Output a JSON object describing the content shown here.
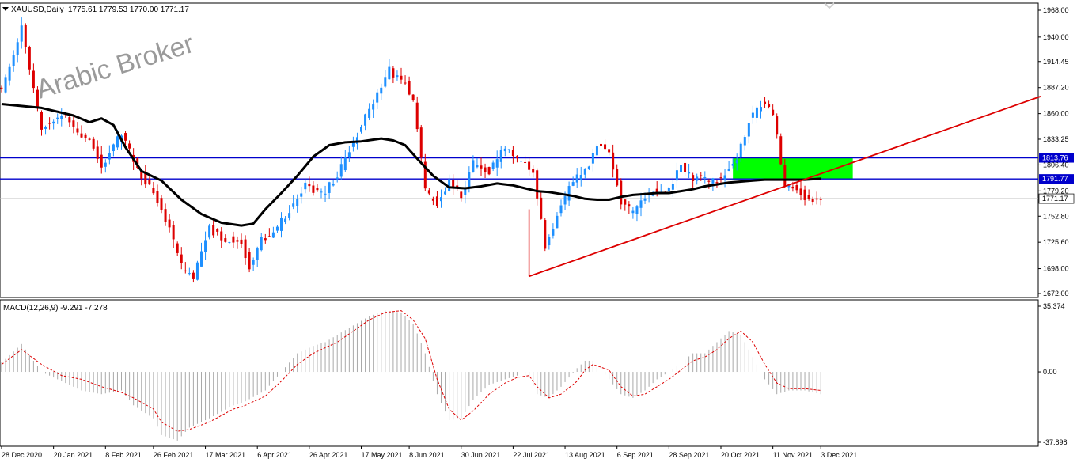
{
  "header": {
    "symbol_text": "XAUUSD,Daily",
    "ohlc_text": "1775.61 1779.53 1770.00 1771.17"
  },
  "watermark": "Arabic Broker",
  "macd_header": "MACD(12,26,9) -9.291 -7.278",
  "chart_data": [
    {
      "type": "candlestick",
      "symbol": "XAUUSD",
      "timeframe": "Daily",
      "ohlc_last": {
        "open": 1775.61,
        "high": 1779.53,
        "low": 1770.0,
        "close": 1771.17
      },
      "ylim": [
        1672,
        1968
      ],
      "y_ticks": [
        1968.0,
        1940.0,
        1914.45,
        1887.2,
        1860.0,
        1833.25,
        1806.4,
        1779.2,
        1752.8,
        1725.6,
        1698.0,
        1672.0
      ],
      "x_tick_labels": [
        "28 Dec 2020",
        "20 Jan 2021",
        "8 Feb 2021",
        "26 Feb 2021",
        "17 Mar 2021",
        "6 Apr 2021",
        "26 Apr 2021",
        "17 May 2021",
        "8 Jun 2021",
        "30 Jun 2021",
        "22 Jul 2021",
        "13 Aug 2021",
        "6 Sep 2021",
        "28 Sep 2021",
        "20 Oct 2021",
        "11 Nov 2021",
        "3 Dec 2021"
      ],
      "price_path": [
        [
          0,
          1885
        ],
        [
          5,
          1950
        ],
        [
          10,
          1845
        ],
        [
          15,
          1860
        ],
        [
          22,
          1830
        ],
        [
          25,
          1805
        ],
        [
          30,
          1840
        ],
        [
          34,
          1800
        ],
        [
          38,
          1778
        ],
        [
          42,
          1740
        ],
        [
          45,
          1700
        ],
        [
          48,
          1690
        ],
        [
          52,
          1740
        ],
        [
          55,
          1730
        ],
        [
          60,
          1725
        ],
        [
          62,
          1700
        ],
        [
          65,
          1728
        ],
        [
          68,
          1735
        ],
        [
          72,
          1760
        ],
        [
          76,
          1785
        ],
        [
          80,
          1775
        ],
        [
          84,
          1795
        ],
        [
          88,
          1830
        ],
        [
          92,
          1865
        ],
        [
          97,
          1905
        ],
        [
          101,
          1890
        ],
        [
          103,
          1875
        ],
        [
          106,
          1780
        ],
        [
          109,
          1765
        ],
        [
          112,
          1790
        ],
        [
          115,
          1775
        ],
        [
          118,
          1808
        ],
        [
          122,
          1800
        ],
        [
          126,
          1825
        ],
        [
          130,
          1810
        ],
        [
          133,
          1800
        ],
        [
          136,
          1720
        ],
        [
          139,
          1755
        ],
        [
          143,
          1790
        ],
        [
          146,
          1800
        ],
        [
          149,
          1825
        ],
        [
          152,
          1822
        ],
        [
          155,
          1768
        ],
        [
          158,
          1755
        ],
        [
          161,
          1775
        ],
        [
          164,
          1780
        ],
        [
          167,
          1783
        ],
        [
          170,
          1805
        ],
        [
          173,
          1793
        ],
        [
          176,
          1790
        ],
        [
          180,
          1790
        ],
        [
          184,
          1815
        ],
        [
          187,
          1852
        ],
        [
          190,
          1870
        ],
        [
          193,
          1860
        ],
        [
          196,
          1785
        ],
        [
          199,
          1783
        ],
        [
          202,
          1768
        ],
        [
          205,
          1770
        ]
      ],
      "moving_average": [
        [
          0,
          1870
        ],
        [
          10,
          1866
        ],
        [
          18,
          1858
        ],
        [
          22,
          1851
        ],
        [
          25,
          1855
        ],
        [
          28,
          1848
        ],
        [
          31,
          1825
        ],
        [
          35,
          1800
        ],
        [
          40,
          1790
        ],
        [
          45,
          1770
        ],
        [
          50,
          1755
        ],
        [
          55,
          1746
        ],
        [
          60,
          1743
        ],
        [
          63,
          1745
        ],
        [
          66,
          1760
        ],
        [
          70,
          1777
        ],
        [
          74,
          1795
        ],
        [
          78,
          1815
        ],
        [
          82,
          1827
        ],
        [
          86,
          1830
        ],
        [
          90,
          1831
        ],
        [
          95,
          1834
        ],
        [
          98,
          1832
        ],
        [
          101,
          1827
        ],
        [
          104,
          1813
        ],
        [
          108,
          1795
        ],
        [
          112,
          1783
        ],
        [
          116,
          1782
        ],
        [
          120,
          1784
        ],
        [
          124,
          1787
        ],
        [
          128,
          1785
        ],
        [
          131,
          1782
        ],
        [
          134,
          1779
        ],
        [
          137,
          1778
        ],
        [
          140,
          1776
        ],
        [
          143,
          1774
        ],
        [
          146,
          1771
        ],
        [
          149,
          1770
        ],
        [
          152,
          1770
        ],
        [
          155,
          1773
        ],
        [
          158,
          1775
        ],
        [
          161,
          1776
        ],
        [
          164,
          1777
        ],
        [
          167,
          1777
        ],
        [
          170,
          1779
        ],
        [
          173,
          1781
        ],
        [
          176,
          1784
        ],
        [
          179,
          1786
        ],
        [
          182,
          1788
        ],
        [
          185,
          1789
        ],
        [
          188,
          1790
        ],
        [
          191,
          1791
        ],
        [
          194,
          1791
        ],
        [
          197,
          1791
        ],
        [
          201,
          1791
        ],
        [
          205,
          1792
        ]
      ],
      "horizontal_levels": [
        {
          "value": 1813.76,
          "label": "1813.76",
          "color": "#0000cc"
        },
        {
          "value": 1791.77,
          "label": "1791.77",
          "color": "#0000cc"
        }
      ],
      "current_price": {
        "value": 1771.17,
        "label": "1771.17"
      },
      "trendline": {
        "from": {
          "bar": 132,
          "price": 1690
        },
        "to": {
          "bar": 260,
          "price": 1878
        },
        "color": "#dd0000"
      },
      "zone": {
        "from_bar": 183,
        "to_bar": 213,
        "top": 1813.76,
        "bottom": 1791.77,
        "color": "#00ff00"
      },
      "colors": {
        "bull": "#1e90ff",
        "bear": "#dd0000",
        "ma": "#000000",
        "grid": "#c0c0c0"
      }
    },
    {
      "type": "macd",
      "params": "12,26,9",
      "main_value": -9.291,
      "signal_value": -7.278,
      "ylim": [
        -37.898,
        35.374
      ],
      "y_ticks": [
        35.374,
        0.0,
        -37.898
      ],
      "histogram_path": [
        [
          0,
          5
        ],
        [
          5,
          15
        ],
        [
          10,
          0
        ],
        [
          15,
          -5
        ],
        [
          20,
          -10
        ],
        [
          25,
          -12
        ],
        [
          30,
          -10
        ],
        [
          33,
          -18
        ],
        [
          38,
          -25
        ],
        [
          40,
          -34
        ],
        [
          44,
          -37
        ],
        [
          47,
          -30
        ],
        [
          52,
          -25
        ],
        [
          58,
          -18
        ],
        [
          60,
          -17
        ],
        [
          66,
          -10
        ],
        [
          70,
          0
        ],
        [
          74,
          10
        ],
        [
          78,
          14
        ],
        [
          81,
          16
        ],
        [
          84,
          20
        ],
        [
          88,
          25
        ],
        [
          92,
          30
        ],
        [
          96,
          33
        ],
        [
          100,
          32
        ],
        [
          103,
          26
        ],
        [
          106,
          10
        ],
        [
          109,
          -12
        ],
        [
          112,
          -26
        ],
        [
          115,
          -25
        ],
        [
          118,
          -15
        ],
        [
          122,
          -7
        ],
        [
          126,
          -4
        ],
        [
          129,
          -2
        ],
        [
          132,
          -3
        ],
        [
          134,
          -12
        ],
        [
          137,
          -14
        ],
        [
          140,
          -8
        ],
        [
          144,
          2
        ],
        [
          146,
          6
        ],
        [
          148,
          6
        ],
        [
          152,
          -4
        ],
        [
          155,
          -12
        ],
        [
          158,
          -14
        ],
        [
          161,
          -10
        ],
        [
          164,
          -4
        ],
        [
          167,
          0
        ],
        [
          170,
          5
        ],
        [
          173,
          10
        ],
        [
          176,
          10
        ],
        [
          179,
          16
        ],
        [
          182,
          22
        ],
        [
          185,
          20
        ],
        [
          188,
          8
        ],
        [
          191,
          -4
        ],
        [
          194,
          -12
        ],
        [
          197,
          -10
        ],
        [
          201,
          -10
        ],
        [
          205,
          -12
        ]
      ],
      "signal_path": [
        [
          0,
          4
        ],
        [
          5,
          12
        ],
        [
          10,
          4
        ],
        [
          15,
          -2
        ],
        [
          20,
          -4
        ],
        [
          25,
          -8
        ],
        [
          30,
          -11
        ],
        [
          33,
          -14
        ],
        [
          38,
          -20
        ],
        [
          40,
          -27
        ],
        [
          44,
          -32
        ],
        [
          47,
          -31
        ],
        [
          52,
          -27
        ],
        [
          58,
          -20
        ],
        [
          60,
          -19
        ],
        [
          66,
          -13
        ],
        [
          70,
          -5
        ],
        [
          74,
          4
        ],
        [
          78,
          10
        ],
        [
          81,
          13
        ],
        [
          84,
          16
        ],
        [
          88,
          22
        ],
        [
          92,
          28
        ],
        [
          96,
          32
        ],
        [
          100,
          33
        ],
        [
          103,
          28
        ],
        [
          106,
          18
        ],
        [
          109,
          -4
        ],
        [
          112,
          -20
        ],
        [
          115,
          -26
        ],
        [
          118,
          -21
        ],
        [
          122,
          -12
        ],
        [
          126,
          -6
        ],
        [
          129,
          -3
        ],
        [
          132,
          -2
        ],
        [
          134,
          -8
        ],
        [
          137,
          -14
        ],
        [
          140,
          -12
        ],
        [
          144,
          -5
        ],
        [
          146,
          1
        ],
        [
          148,
          4
        ],
        [
          152,
          1
        ],
        [
          155,
          -8
        ],
        [
          158,
          -13
        ],
        [
          161,
          -12
        ],
        [
          164,
          -8
        ],
        [
          167,
          -4
        ],
        [
          170,
          1
        ],
        [
          173,
          6
        ],
        [
          176,
          8
        ],
        [
          179,
          12
        ],
        [
          182,
          18
        ],
        [
          185,
          22
        ],
        [
          188,
          16
        ],
        [
          191,
          4
        ],
        [
          194,
          -6
        ],
        [
          197,
          -9
        ],
        [
          201,
          -9
        ],
        [
          205,
          -10
        ]
      ],
      "colors": {
        "histogram": "#a9a9a9",
        "signal": "#dd0000"
      }
    }
  ]
}
